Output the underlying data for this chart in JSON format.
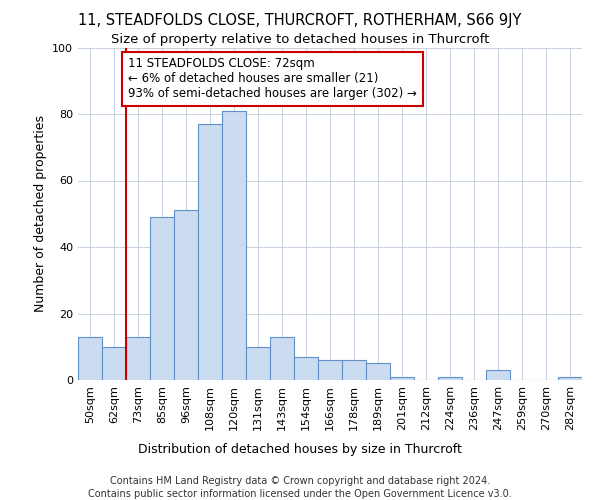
{
  "title": "11, STEADFOLDS CLOSE, THURCROFT, ROTHERHAM, S66 9JY",
  "subtitle": "Size of property relative to detached houses in Thurcroft",
  "xlabel": "Distribution of detached houses by size in Thurcroft",
  "ylabel": "Number of detached properties",
  "categories": [
    "50sqm",
    "62sqm",
    "73sqm",
    "85sqm",
    "96sqm",
    "108sqm",
    "120sqm",
    "131sqm",
    "143sqm",
    "154sqm",
    "166sqm",
    "178sqm",
    "189sqm",
    "201sqm",
    "212sqm",
    "224sqm",
    "236sqm",
    "247sqm",
    "259sqm",
    "270sqm",
    "282sqm"
  ],
  "values": [
    13,
    10,
    13,
    49,
    51,
    77,
    81,
    10,
    13,
    7,
    6,
    6,
    5,
    1,
    0,
    1,
    0,
    3,
    0,
    0,
    1
  ],
  "bar_color": "#ccdcf0",
  "bar_edge_color": "#6090c8",
  "annotation_text": "11 STEADFOLDS CLOSE: 72sqm\n← 6% of detached houses are smaller (21)\n93% of semi-detached houses are larger (302) →",
  "annotation_box_color": "#ffffff",
  "annotation_box_edge_color": "#cc0000",
  "vline_color": "#cc0000",
  "footer_line1": "Contains HM Land Registry data © Crown copyright and database right 2024.",
  "footer_line2": "Contains public sector information licensed under the Open Government Licence v3.0.",
  "ylim": [
    0,
    100
  ],
  "title_fontsize": 10.5,
  "subtitle_fontsize": 9.5,
  "axis_label_fontsize": 9,
  "tick_fontsize": 8,
  "annotation_fontsize": 8.5,
  "footer_fontsize": 7,
  "bg_color": "#ffffff",
  "plot_bg_color": "#ffffff",
  "grid_color": "#c8d0e0"
}
